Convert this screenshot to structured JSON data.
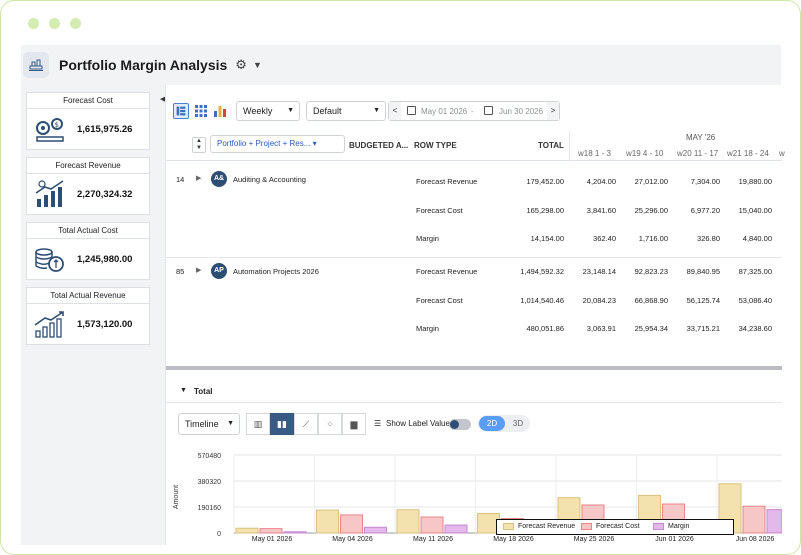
{
  "app": {
    "title": "Portfolio Margin Analysis",
    "title_icon": "report-icon",
    "settings_icon": "gear-icon",
    "menu_icon": "caret-down-icon"
  },
  "kpis": [
    {
      "title": "Forecast Cost",
      "value": "1,615,975.26",
      "icon": "cost-gears-icon"
    },
    {
      "title": "Forecast Revenue",
      "value": "2,270,324.32",
      "icon": "revenue-growth-icon"
    },
    {
      "title": "Total Actual Cost",
      "value": "1,245,980.00",
      "icon": "coins-icon"
    },
    {
      "title": "Total Actual Revenue",
      "value": "1,573,120.00",
      "icon": "bar-growth-icon"
    }
  ],
  "toolbar": {
    "period": "Weekly",
    "view": "Default",
    "date_from": "May 01 2026",
    "date_sep": "-",
    "date_to": "Jun 30 2026",
    "prev": "<",
    "next": ">"
  },
  "grid": {
    "group_chip": "Portfolio + Project + Res...",
    "columns": {
      "budgeted": "BUDGETED A...",
      "row_type": "ROW TYPE",
      "total": "TOTAL"
    },
    "month": "MAY '26",
    "weeks": [
      "w18 1 - 3",
      "w19 4 - 10",
      "w20 11 - 17",
      "w21 18 - 24",
      "w"
    ],
    "groups": [
      {
        "id": "14",
        "avatar": "A&",
        "name": "Auditing & Accounting",
        "rows": [
          {
            "type": "Forecast Revenue",
            "total": "179,452.00",
            "w": [
              "4,204.00",
              "27,012.00",
              "7,304.00",
              "19,880.00"
            ]
          },
          {
            "type": "Forecast Cost",
            "total": "165,298.00",
            "w": [
              "3,841.60",
              "25,296.00",
              "6,977.20",
              "15,040.00"
            ]
          },
          {
            "type": "Margin",
            "total": "14,154.00",
            "w": [
              "362.40",
              "1,716.00",
              "326.80",
              "4,840.00"
            ]
          }
        ]
      },
      {
        "id": "85",
        "avatar": "AP",
        "name": "Automation Projects 2026",
        "rows": [
          {
            "type": "Forecast Revenue",
            "total": "1,494,592.32",
            "w": [
              "23,148.14",
              "92,823.23",
              "89,840.95",
              "87,325.00"
            ]
          },
          {
            "type": "Forecast Cost",
            "total": "1,014,540.46",
            "w": [
              "20,084.23",
              "66,868.90",
              "56,125.74",
              "53,086.40"
            ]
          },
          {
            "type": "Margin",
            "total": "480,051.86",
            "w": [
              "3,063.91",
              "25,954.34",
              "33,715.21",
              "34,238.60"
            ]
          }
        ]
      }
    ]
  },
  "total_section": {
    "label": "Total"
  },
  "chart_tools": {
    "type_select": "Timeline",
    "show_label": "Show Label Value",
    "mode_2d": "2D",
    "mode_3d": "3D"
  },
  "chart_data": {
    "type": "bar",
    "title": "",
    "xlabel": "",
    "ylabel": "Amount",
    "ylim": [
      0,
      570480
    ],
    "yticks": [
      0,
      190160,
      380320,
      570480
    ],
    "ytick_labels": [
      "0",
      "190160",
      "380320",
      "570480"
    ],
    "grid": true,
    "legend": "bottom",
    "categories": [
      "May 01 2026",
      "May 04 2026",
      "May 11 2026",
      "May 18 2026",
      "May 25 2026",
      "Jun 01 2026",
      "Jun 08 2026"
    ],
    "series": [
      {
        "name": "Forecast Revenue",
        "color": "#f3e2ad",
        "stroke": "#d9c27f",
        "values": [
          35000,
          168000,
          170000,
          143000,
          258000,
          275000,
          360000
        ]
      },
      {
        "name": "Forecast Cost",
        "color": "#f7c7c7",
        "stroke": "#e8868a",
        "values": [
          32000,
          132000,
          117000,
          106000,
          205000,
          212000,
          196000
        ]
      },
      {
        "name": "Margin",
        "color": "#e3b8ea",
        "stroke": "#c888d4",
        "values": [
          9000,
          42000,
          58000,
          37000,
          60000,
          78000,
          171000
        ]
      }
    ]
  }
}
